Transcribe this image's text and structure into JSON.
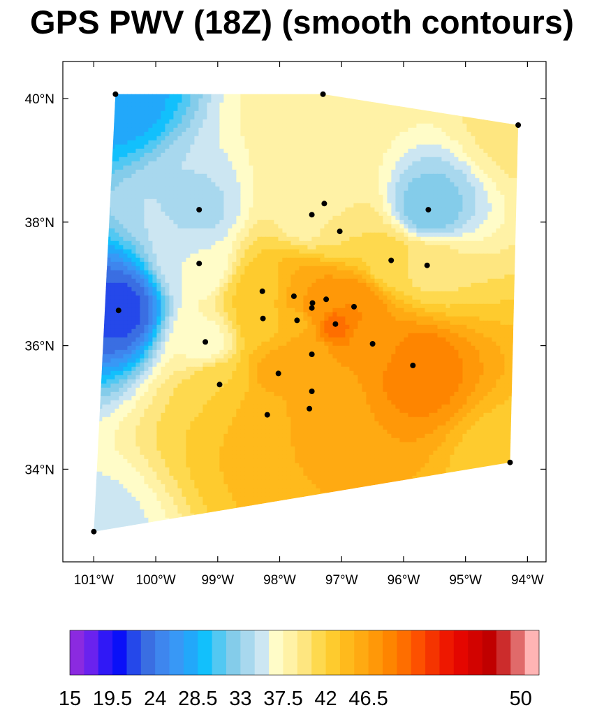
{
  "chart_data": {
    "type": "heatmap",
    "title": "GPS PWV (18Z) (smooth contours)",
    "xlabel": "",
    "ylabel": "",
    "x_ticks": [
      "101°W",
      "100°W",
      "99°W",
      "98°W",
      "97°W",
      "96°W",
      "95°W",
      "94°W"
    ],
    "x_tick_values": [
      -101,
      -100,
      -99,
      -98,
      -97,
      -96,
      -95,
      -94
    ],
    "y_ticks": [
      "34°N",
      "36°N",
      "38°N",
      "40°N"
    ],
    "y_tick_values": [
      34,
      36,
      38,
      40
    ],
    "xlim": [
      -101.5,
      -93.7
    ],
    "ylim": [
      32.5,
      40.6
    ],
    "colorbar": {
      "min": 15,
      "max": 50,
      "step": 1.5,
      "labels": [
        "15",
        "19.5",
        "24",
        "28.5",
        "33",
        "37.5",
        "42",
        "46.5",
        "50"
      ],
      "label_values": [
        15,
        19.5,
        24,
        28.5,
        33,
        37.5,
        42,
        46.5,
        50
      ],
      "colors": [
        "#8b2ae0",
        "#6a22ee",
        "#3018f6",
        "#0a10f8",
        "#2548ea",
        "#3a6ee2",
        "#3e86ee",
        "#3898f6",
        "#22a8fa",
        "#12c0fc",
        "#52c8f2",
        "#84ccea",
        "#a8d8ee",
        "#cce6f2",
        "#fffcc8",
        "#fff2a6",
        "#fee680",
        "#fed94e",
        "#fecb2e",
        "#ffba1c",
        "#ffaa12",
        "#ff9808",
        "#fe8500",
        "#fe6e00",
        "#fd5000",
        "#f53400",
        "#ee1800",
        "#e40600",
        "#d20300",
        "#c00000",
        "#cc2c2c",
        "#e06a6a",
        "#ffb4b4"
      ]
    },
    "stations": [
      {
        "lon": -100.65,
        "lat": 40.07,
        "pwv": 27.5
      },
      {
        "lon": -97.3,
        "lat": 40.07,
        "pwv": 38.5
      },
      {
        "lon": -94.15,
        "lat": 39.57,
        "pwv": 39.5
      },
      {
        "lon": -99.3,
        "lat": 38.2,
        "pwv": 34.2
      },
      {
        "lon": -97.28,
        "lat": 38.3,
        "pwv": 37.5
      },
      {
        "lon": -97.48,
        "lat": 38.12,
        "pwv": 37.5
      },
      {
        "lon": -95.6,
        "lat": 38.2,
        "pwv": 32.0
      },
      {
        "lon": -97.03,
        "lat": 37.85,
        "pwv": 40.5
      },
      {
        "lon": -99.3,
        "lat": 37.33,
        "pwv": 36.0
      },
      {
        "lon": -96.2,
        "lat": 37.38,
        "pwv": 41.0
      },
      {
        "lon": -95.62,
        "lat": 37.3,
        "pwv": 40.0
      },
      {
        "lon": -98.28,
        "lat": 36.88,
        "pwv": 42.5
      },
      {
        "lon": -97.77,
        "lat": 36.8,
        "pwv": 45.0
      },
      {
        "lon": -97.25,
        "lat": 36.75,
        "pwv": 47.0
      },
      {
        "lon": -97.47,
        "lat": 36.69,
        "pwv": 47.0
      },
      {
        "lon": -97.48,
        "lat": 36.61,
        "pwv": 47.0
      },
      {
        "lon": -96.8,
        "lat": 36.63,
        "pwv": 48.0
      },
      {
        "lon": -100.6,
        "lat": 36.57,
        "pwv": 22.0
      },
      {
        "lon": -98.27,
        "lat": 36.44,
        "pwv": 42.5
      },
      {
        "lon": -97.72,
        "lat": 36.41,
        "pwv": 44.5
      },
      {
        "lon": -97.1,
        "lat": 36.35,
        "pwv": 50.0
      },
      {
        "lon": -99.2,
        "lat": 36.06,
        "pwv": 37.0
      },
      {
        "lon": -96.5,
        "lat": 36.03,
        "pwv": 46.5
      },
      {
        "lon": -97.48,
        "lat": 35.86,
        "pwv": 46.0
      },
      {
        "lon": -95.85,
        "lat": 35.68,
        "pwv": 49.5
      },
      {
        "lon": -98.02,
        "lat": 35.55,
        "pwv": 45.5
      },
      {
        "lon": -98.97,
        "lat": 35.37,
        "pwv": 42.0
      },
      {
        "lon": -97.48,
        "lat": 35.26,
        "pwv": 45.5
      },
      {
        "lon": -97.52,
        "lat": 34.98,
        "pwv": 45.5
      },
      {
        "lon": -98.2,
        "lat": 34.88,
        "pwv": 44.5
      },
      {
        "lon": -94.28,
        "lat": 34.11,
        "pwv": 42.5
      },
      {
        "lon": -101.0,
        "lat": 32.99,
        "pwv": 35.5
      }
    ],
    "grid": false,
    "legend": "bottom colorbar"
  }
}
